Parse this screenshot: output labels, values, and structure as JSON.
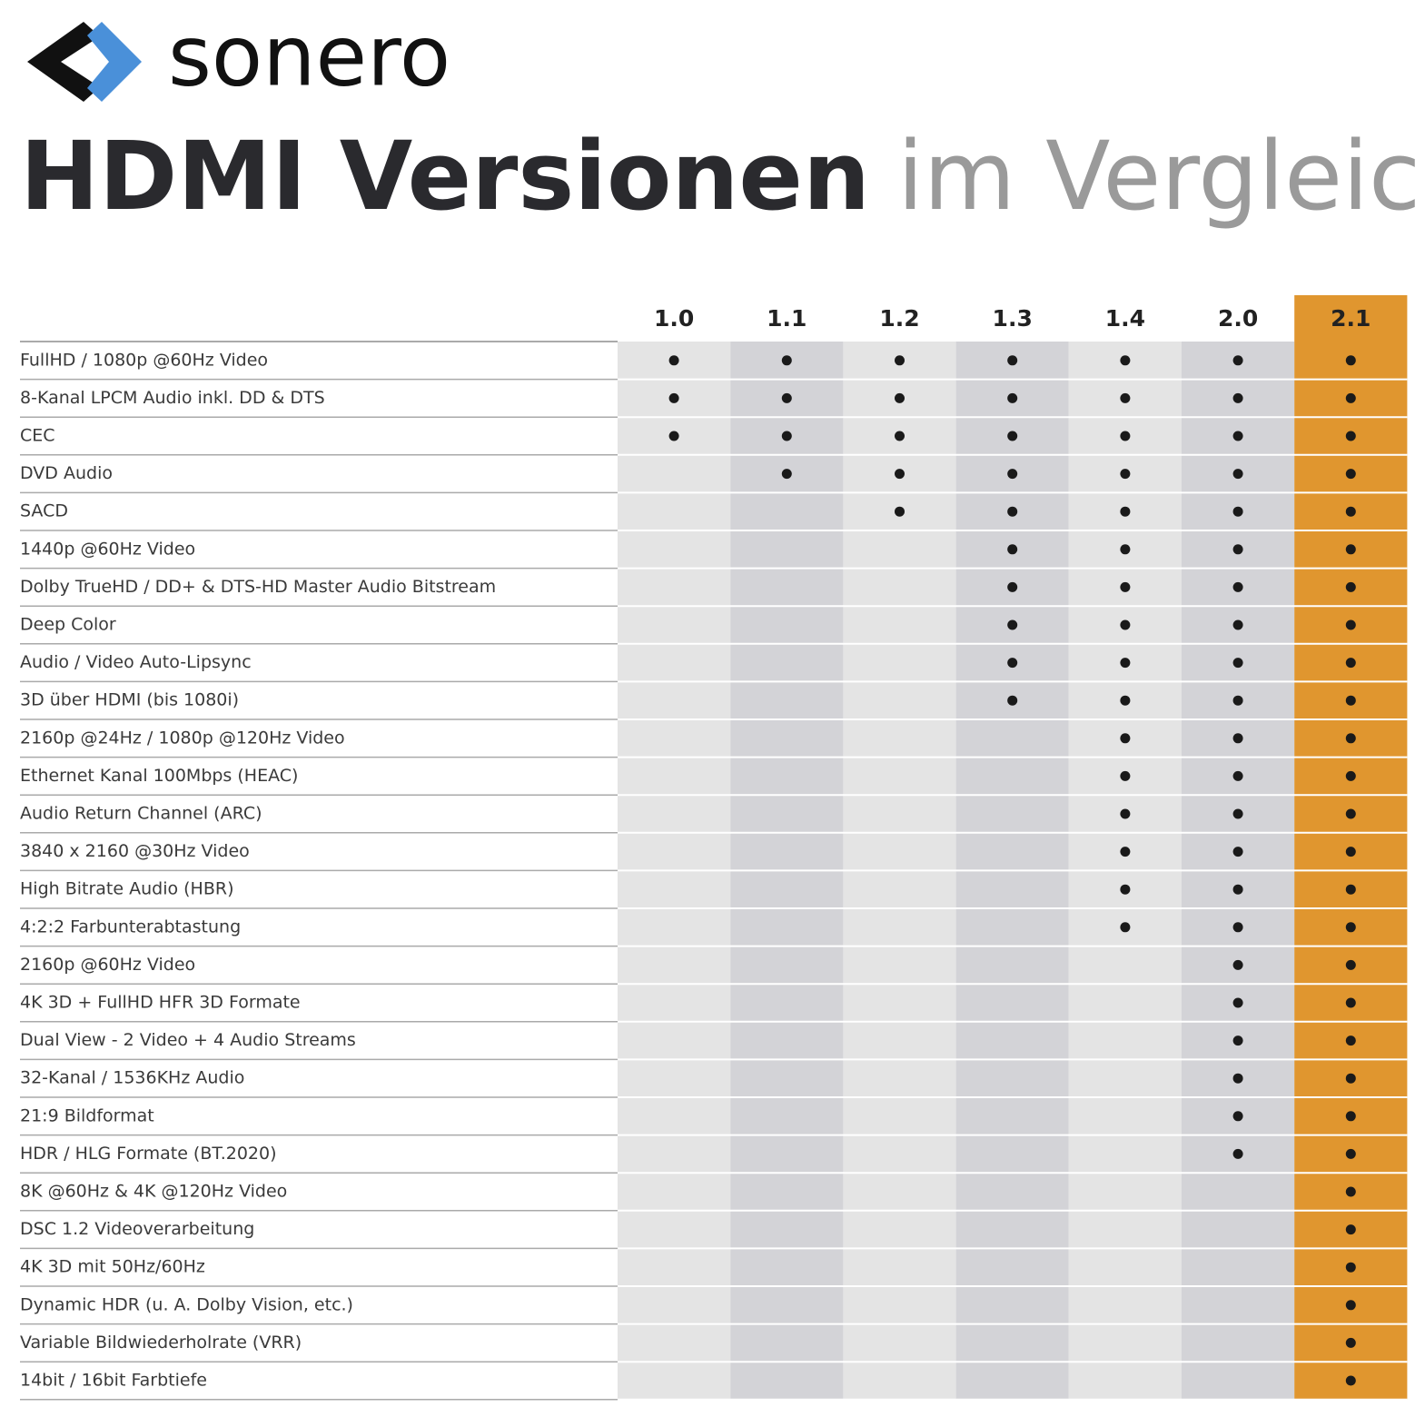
{
  "brand": "sonero",
  "title": {
    "bold": "HDMI Versionen",
    "light": "im Vergleich"
  },
  "table": {
    "columns": [
      "1.0",
      "1.1",
      "1.2",
      "1.3",
      "1.4",
      "2.0",
      "2.1"
    ],
    "rows": [
      {
        "label": "FullHD / 1080p @60Hz Video",
        "support": [
          true,
          true,
          true,
          true,
          true,
          true,
          true
        ]
      },
      {
        "label": "8-Kanal LPCM Audio inkl. DD & DTS",
        "support": [
          true,
          true,
          true,
          true,
          true,
          true,
          true
        ]
      },
      {
        "label": "CEC",
        "support": [
          true,
          true,
          true,
          true,
          true,
          true,
          true
        ]
      },
      {
        "label": "DVD Audio",
        "support": [
          false,
          true,
          true,
          true,
          true,
          true,
          true
        ]
      },
      {
        "label": "SACD",
        "support": [
          false,
          false,
          true,
          true,
          true,
          true,
          true
        ]
      },
      {
        "label": "1440p @60Hz Video",
        "support": [
          false,
          false,
          false,
          true,
          true,
          true,
          true
        ]
      },
      {
        "label": "Dolby TrueHD / DD+ & DTS-HD Master Audio Bitstream",
        "support": [
          false,
          false,
          false,
          true,
          true,
          true,
          true
        ]
      },
      {
        "label": "Deep Color",
        "support": [
          false,
          false,
          false,
          true,
          true,
          true,
          true
        ]
      },
      {
        "label": "Audio / Video Auto-Lipsync",
        "support": [
          false,
          false,
          false,
          true,
          true,
          true,
          true
        ]
      },
      {
        "label": "3D über HDMI (bis 1080i)",
        "support": [
          false,
          false,
          false,
          true,
          true,
          true,
          true
        ]
      },
      {
        "label": "2160p @24Hz / 1080p @120Hz Video",
        "support": [
          false,
          false,
          false,
          false,
          true,
          true,
          true
        ]
      },
      {
        "label": "Ethernet Kanal 100Mbps (HEAC)",
        "support": [
          false,
          false,
          false,
          false,
          true,
          true,
          true
        ]
      },
      {
        "label": "Audio Return Channel (ARC)",
        "support": [
          false,
          false,
          false,
          false,
          true,
          true,
          true
        ]
      },
      {
        "label": "3840 x 2160 @30Hz Video",
        "support": [
          false,
          false,
          false,
          false,
          true,
          true,
          true
        ]
      },
      {
        "label": "High Bitrate Audio (HBR)",
        "support": [
          false,
          false,
          false,
          false,
          true,
          true,
          true
        ]
      },
      {
        "label": "4:2:2 Farbunterabtastung",
        "support": [
          false,
          false,
          false,
          false,
          true,
          true,
          true
        ]
      },
      {
        "label": "2160p @60Hz Video",
        "support": [
          false,
          false,
          false,
          false,
          false,
          true,
          true
        ]
      },
      {
        "label": "4K 3D + FullHD HFR 3D Formate",
        "support": [
          false,
          false,
          false,
          false,
          false,
          true,
          true
        ]
      },
      {
        "label": "Dual View - 2 Video + 4 Audio Streams",
        "support": [
          false,
          false,
          false,
          false,
          false,
          true,
          true
        ]
      },
      {
        "label": "32-Kanal / 1536KHz Audio",
        "support": [
          false,
          false,
          false,
          false,
          false,
          true,
          true
        ]
      },
      {
        "label": "21:9 Bildformat",
        "support": [
          false,
          false,
          false,
          false,
          false,
          true,
          true
        ]
      },
      {
        "label": "HDR / HLG Formate (BT.2020)",
        "support": [
          false,
          false,
          false,
          false,
          false,
          true,
          true
        ]
      },
      {
        "label": "8K @60Hz & 4K @120Hz Video",
        "support": [
          false,
          false,
          false,
          false,
          false,
          false,
          true
        ]
      },
      {
        "label": "DSC 1.2 Videoverarbeitung",
        "support": [
          false,
          false,
          false,
          false,
          false,
          false,
          true
        ]
      },
      {
        "label": "4K 3D mit 50Hz/60Hz",
        "support": [
          false,
          false,
          false,
          false,
          false,
          false,
          true
        ]
      },
      {
        "label": "Dynamic HDR (u. A. Dolby Vision, etc.)",
        "support": [
          false,
          false,
          false,
          false,
          false,
          false,
          true
        ]
      },
      {
        "label": "Variable Bildwiederholrate (VRR)",
        "support": [
          false,
          false,
          false,
          false,
          false,
          false,
          true
        ]
      },
      {
        "label": "14bit / 16bit Farbtiefe",
        "support": [
          false,
          false,
          false,
          false,
          false,
          false,
          true
        ]
      }
    ]
  }
}
